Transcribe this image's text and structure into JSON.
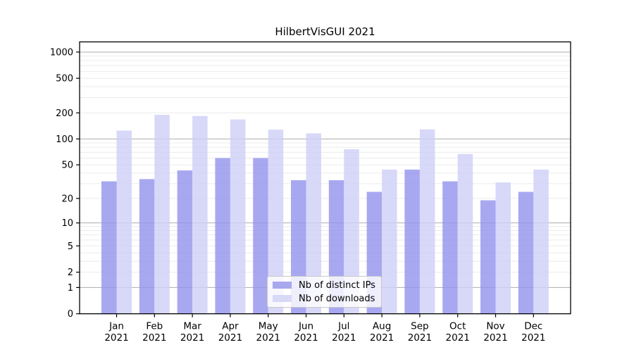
{
  "chart_data": {
    "type": "bar",
    "title": "HilbertVisGUI 2021",
    "categories": [
      "Jan",
      "Feb",
      "Mar",
      "Apr",
      "May",
      "Jun",
      "Jul",
      "Aug",
      "Sep",
      "Oct",
      "Nov",
      "Dec"
    ],
    "year_label": "2021",
    "series": [
      {
        "name": "Nb of distinct IPs",
        "color": "#a8a8ee",
        "fill": "rgba(146,146,238,0.8)",
        "values": [
          32,
          34,
          43,
          60,
          60,
          33,
          33,
          24,
          44,
          32,
          19,
          24
        ]
      },
      {
        "name": "Nb of downloads",
        "color": "#d8d8f7",
        "fill": "rgba(206,206,248,0.8)",
        "values": [
          125,
          190,
          184,
          168,
          128,
          116,
          76,
          44,
          129,
          67,
          31,
          44
        ]
      }
    ],
    "scale": "log1p",
    "ylim": [
      0,
      1100
    ],
    "yticks": [
      1000,
      500,
      200,
      100,
      50,
      20,
      10,
      5,
      2,
      1,
      0
    ],
    "minor_gridlines": [
      2,
      3,
      4,
      5,
      6,
      7,
      8,
      9,
      20,
      30,
      40,
      50,
      60,
      70,
      80,
      90,
      200,
      300,
      400,
      500,
      600,
      700,
      800,
      900
    ],
    "major_gridlines": [
      1,
      10,
      100,
      1000
    ],
    "grid": "horizontal, minor light + decade dark, visible through translucent bars",
    "legend_position": "inside plot, lower center",
    "colors": {
      "axis_box": "#000000",
      "major_grid": "#adadad",
      "minor_grid": "#ebebeb",
      "tick_text": "#000000",
      "background": "#ffffff"
    }
  }
}
